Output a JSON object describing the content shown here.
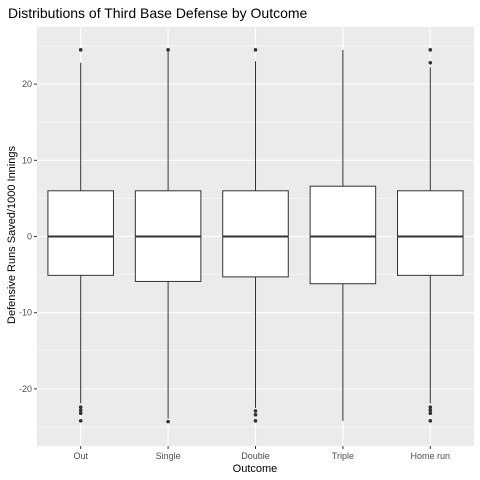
{
  "chart_data": {
    "type": "boxplot",
    "title": "Distributions of Third Base Defense by Outcome",
    "xlabel": "Outcome",
    "ylabel": "Defensive Runs Saved/1000 Innings",
    "ylim": [
      -27.5,
      27.5
    ],
    "yticks": [
      -20,
      -10,
      0,
      10,
      20
    ],
    "grid": true,
    "background": "#ebebeb",
    "categories": [
      "Out",
      "Single",
      "Double",
      "Triple",
      "Home run"
    ],
    "boxes": [
      {
        "category": "Out",
        "q1": -5.1,
        "median": 0,
        "q3": 6.0,
        "whisker_low": -21.9,
        "whisker_high": 22.8,
        "outliers": [
          24.5,
          -22.4,
          -22.8,
          -23.2,
          -24.2
        ]
      },
      {
        "category": "Single",
        "q1": -5.9,
        "median": 0,
        "q3": 6.0,
        "whisker_low": -23.9,
        "whisker_high": 24.5,
        "outliers": [
          24.5,
          -24.3
        ]
      },
      {
        "category": "Double",
        "q1": -5.3,
        "median": 0,
        "q3": 6.0,
        "whisker_low": -22.5,
        "whisker_high": 23.0,
        "outliers": [
          24.5,
          -22.9,
          -23.4,
          -24.2
        ]
      },
      {
        "category": "Triple",
        "q1": -6.2,
        "median": 0,
        "q3": 6.6,
        "whisker_low": -24.2,
        "whisker_high": 24.5,
        "outliers": []
      },
      {
        "category": "Home run",
        "q1": -5.1,
        "median": 0,
        "q3": 6.0,
        "whisker_low": -21.9,
        "whisker_high": 22.2,
        "outliers": [
          24.5,
          22.8,
          -22.4,
          -22.8,
          -23.2,
          -24.2
        ]
      }
    ],
    "colors": {
      "panel": "#ebebeb",
      "grid": "#ffffff",
      "box_fill": "#ffffff",
      "box_stroke": "#333333",
      "tick_text": "#4d4d4d"
    }
  }
}
